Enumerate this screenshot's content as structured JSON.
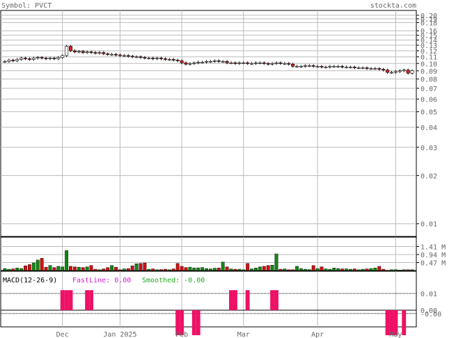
{
  "header": {
    "symbol_label": "Symbol: PVCT",
    "site": "stockta.com"
  },
  "colors": {
    "up": "#ffffff",
    "down": "#dd2222",
    "vol_down": "#cc1111",
    "vol_up": "#118811",
    "macd_fast": "#cc22cc",
    "macd_smooth": "#22aa22",
    "macd_fill": "#ee1166",
    "grid": "#bbbbbb",
    "frame": "#000000",
    "label": "#666666"
  },
  "macd_header": {
    "name": "MACD(12-26-9)",
    "fast": "FastLine: 0.00",
    "smoothed": "Smoothed: -0.00"
  },
  "chart_data": {
    "type": "candlestick",
    "price_axis": {
      "scale": "log",
      "ticks": [
        "0.20",
        "0.19",
        "0.18",
        "0.16",
        "0.15",
        "0.14",
        "0.13",
        "0.12",
        "0.11",
        "0.10",
        "0.09",
        "0.08",
        "0.07",
        "0.06",
        "0.05",
        "0.04",
        "0.03",
        "0.02",
        "0.01"
      ],
      "tick_values": [
        0.2,
        0.19,
        0.18,
        0.16,
        0.15,
        0.14,
        0.13,
        0.12,
        0.11,
        0.1,
        0.09,
        0.08,
        0.07,
        0.06,
        0.05,
        0.04,
        0.03,
        0.02,
        0.01
      ],
      "range": [
        0.0085,
        0.21
      ]
    },
    "volume_axis": {
      "ticks": [
        "1.41 M",
        "0.94 M",
        "0.47 M"
      ],
      "tick_values": [
        1.41,
        0.94,
        0.47
      ],
      "range": [
        0,
        1.88
      ]
    },
    "macd_axis": {
      "ticks": [
        "0.01",
        "0.00",
        "-0.00"
      ],
      "tick_values": [
        0.01,
        0.0,
        -0.002
      ],
      "range": [
        -0.01,
        0.015
      ]
    },
    "x_axis": {
      "labels": [
        "Dec",
        "Jan 2025",
        "Feb",
        "Mar",
        "Apr",
        "May"
      ],
      "label_index": [
        14,
        28,
        43,
        58,
        76,
        95
      ]
    },
    "days": 100,
    "closes": [
      0.103,
      0.105,
      0.104,
      0.106,
      0.108,
      0.107,
      0.106,
      0.108,
      0.109,
      0.108,
      0.107,
      0.108,
      0.107,
      0.109,
      0.112,
      0.128,
      0.12,
      0.118,
      0.119,
      0.117,
      0.118,
      0.117,
      0.116,
      0.117,
      0.115,
      0.114,
      0.114,
      0.113,
      0.112,
      0.112,
      0.111,
      0.11,
      0.11,
      0.109,
      0.108,
      0.108,
      0.107,
      0.108,
      0.107,
      0.106,
      0.106,
      0.105,
      0.104,
      0.101,
      0.099,
      0.1,
      0.101,
      0.102,
      0.102,
      0.103,
      0.103,
      0.104,
      0.103,
      0.103,
      0.101,
      0.101,
      0.1,
      0.101,
      0.101,
      0.1,
      0.1,
      0.101,
      0.101,
      0.1,
      0.099,
      0.1,
      0.101,
      0.1,
      0.1,
      0.099,
      0.096,
      0.096,
      0.096,
      0.097,
      0.097,
      0.096,
      0.096,
      0.095,
      0.095,
      0.096,
      0.096,
      0.096,
      0.095,
      0.095,
      0.095,
      0.094,
      0.094,
      0.094,
      0.093,
      0.093,
      0.093,
      0.092,
      0.091,
      0.088,
      0.088,
      0.089,
      0.09,
      0.091,
      0.087,
      0.09
    ],
    "volumes": [
      0.12,
      0.08,
      0.1,
      0.15,
      0.12,
      0.28,
      0.35,
      0.45,
      0.62,
      0.72,
      0.2,
      0.3,
      0.18,
      0.25,
      0.22,
      1.18,
      0.25,
      0.22,
      0.2,
      0.18,
      0.22,
      0.3,
      0.08,
      0.05,
      0.1,
      0.18,
      0.3,
      0.2,
      0.05,
      0.1,
      0.12,
      0.28,
      0.4,
      0.42,
      0.45,
      0.08,
      0.1,
      0.05,
      0.06,
      0.08,
      0.05,
      0.1,
      0.42,
      0.25,
      0.18,
      0.2,
      0.15,
      0.16,
      0.18,
      0.12,
      0.1,
      0.14,
      0.15,
      0.5,
      0.22,
      0.1,
      0.08,
      0.08,
      0.05,
      0.42,
      0.1,
      0.15,
      0.22,
      0.25,
      0.3,
      0.32,
      0.98,
      0.08,
      0.1,
      0.05,
      0.05,
      0.25,
      0.12,
      0.08,
      0.06,
      0.3,
      0.12,
      0.22,
      0.1,
      0.08,
      0.15,
      0.12,
      0.1,
      0.1,
      0.08,
      0.1,
      0.05,
      0.08,
      0.1,
      0.12,
      0.15,
      0.25,
      0.08,
      0.02,
      0.05,
      0.05,
      0.03,
      0.05,
      0.05,
      0.05
    ],
    "macd_hist": [
      0.0,
      0.0,
      0.0,
      0.0,
      0.0,
      0.0,
      0.0,
      0.0,
      0.0,
      0.0,
      0.0,
      0.0,
      0.0,
      0.0,
      0.012,
      0.012,
      0.012,
      0.0,
      0.0,
      0.0,
      0.012,
      0.012,
      0.0,
      0.0,
      0.0,
      0.0,
      0.0,
      0.0,
      0.0,
      0.0,
      0.0,
      0.0,
      0.0,
      0.0,
      0.0,
      0.0,
      0.0,
      0.0,
      0.0,
      0.0,
      0.0,
      0.0,
      -0.015,
      -0.015,
      0.0,
      0.0,
      -0.015,
      -0.015,
      0.0,
      0.0,
      0.0,
      0.0,
      0.0,
      0.0,
      0.0,
      0.012,
      0.012,
      0.0,
      0.0,
      0.012,
      0.0,
      0.0,
      0.0,
      0.0,
      0.0,
      0.012,
      0.012,
      0.0,
      0.0,
      0.0,
      0.0,
      0.0,
      0.0,
      0.0,
      0.0,
      0.0,
      0.0,
      0.0,
      0.0,
      0.0,
      0.0,
      0.0,
      0.0,
      0.0,
      0.0,
      0.0,
      0.0,
      0.0,
      0.0,
      0.0,
      0.0,
      0.0,
      0.0,
      -0.015,
      -0.015,
      -0.015,
      0.0,
      -0.015,
      0.0,
      0.0
    ]
  }
}
